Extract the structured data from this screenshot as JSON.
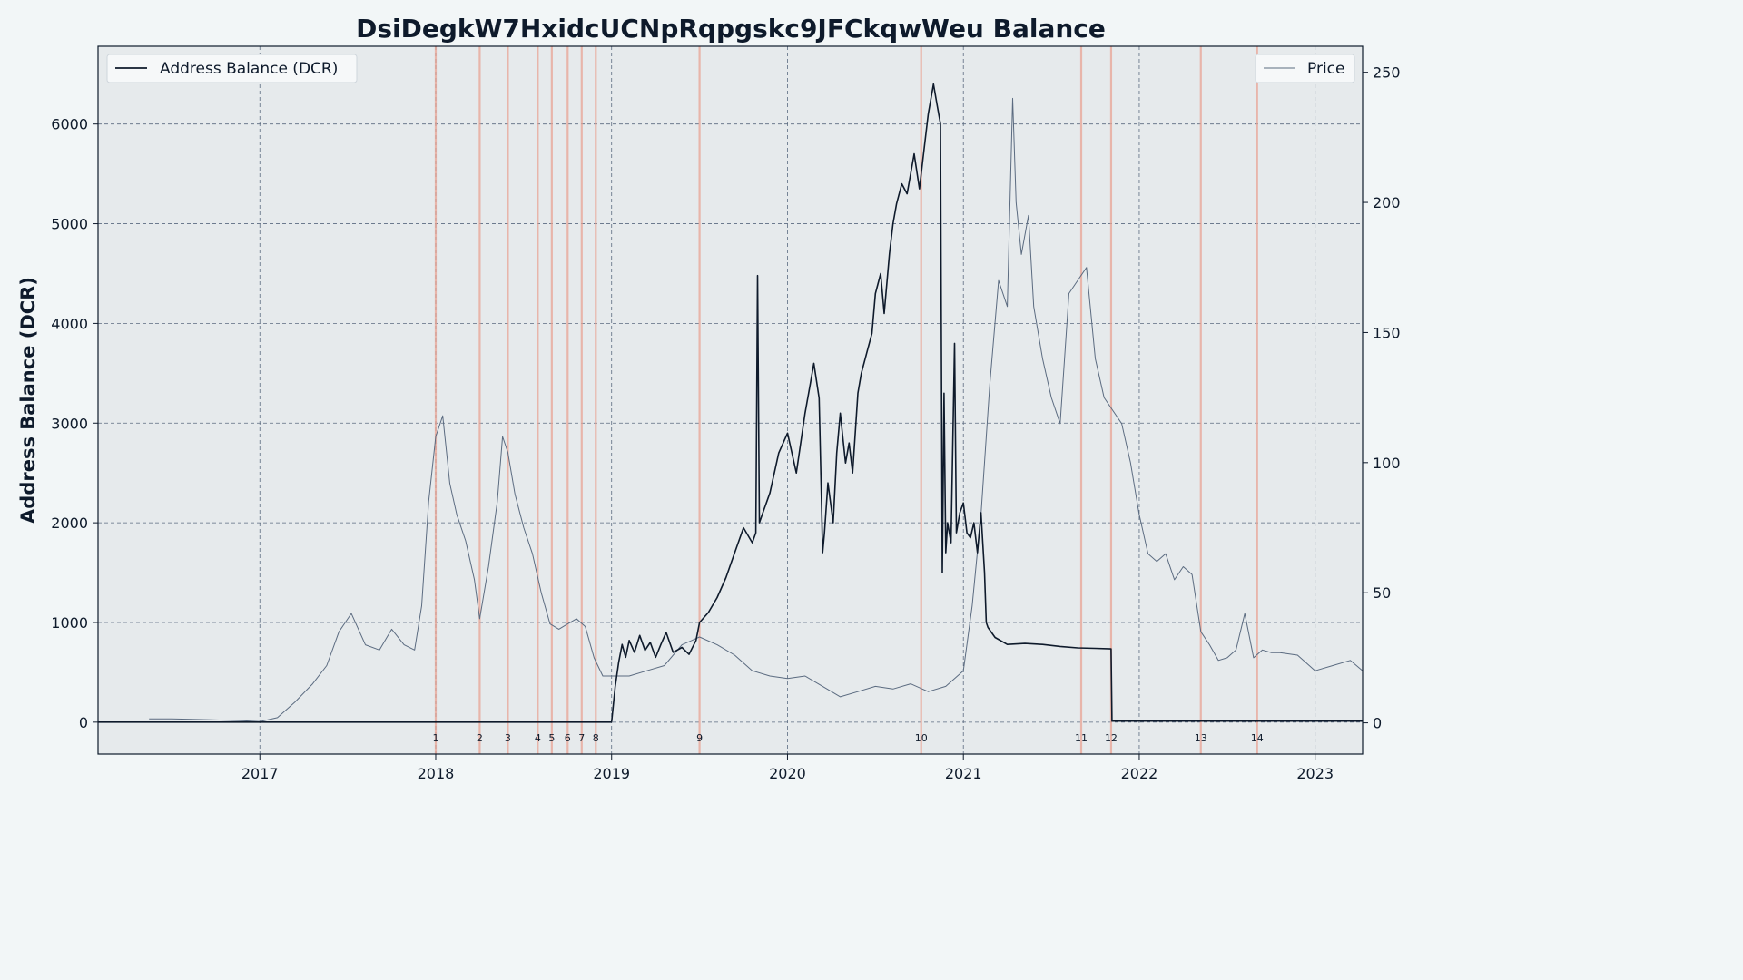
{
  "chart_data": {
    "type": "line",
    "title": "DsiDegkW7HxidcUCNpRqpgskc9JFCkqwWeu Balance",
    "ylabel": "Address Balance (DCR)",
    "y2label": "",
    "xlim": [
      2016.08,
      2023.27
    ],
    "ylim": [
      -320,
      6780
    ],
    "y2lim": [
      -12,
      260
    ],
    "x_ticks": [
      2017,
      2018,
      2019,
      2020,
      2021,
      2022,
      2023
    ],
    "x_tick_labels": [
      "2017",
      "2018",
      "2019",
      "2020",
      "2021",
      "2022",
      "2023"
    ],
    "y_ticks": [
      0,
      1000,
      2000,
      3000,
      4000,
      5000,
      6000
    ],
    "y2_ticks": [
      0,
      50,
      100,
      150,
      200,
      250
    ],
    "grid": true,
    "legend": [
      {
        "label": "Address Balance (DCR)",
        "position": "top-left",
        "color": "#0e1a2b"
      },
      {
        "label": "Price",
        "position": "top-right",
        "color": "#5b6b80"
      }
    ],
    "markers": [
      {
        "label": "1",
        "x": 2018.0
      },
      {
        "label": "2",
        "x": 2018.25
      },
      {
        "label": "3",
        "x": 2018.41
      },
      {
        "label": "4",
        "x": 2018.58
      },
      {
        "label": "5",
        "x": 2018.66
      },
      {
        "label": "6",
        "x": 2018.75
      },
      {
        "label": "7",
        "x": 2018.83
      },
      {
        "label": "8",
        "x": 2018.91
      },
      {
        "label": "9",
        "x": 2019.5
      },
      {
        "label": "10",
        "x": 2020.76
      },
      {
        "label": "11",
        "x": 2021.67
      },
      {
        "label": "12",
        "x": 2021.84
      },
      {
        "label": "13",
        "x": 2022.35
      },
      {
        "label": "14",
        "x": 2022.67
      }
    ],
    "series": [
      {
        "name": "Address Balance (DCR)",
        "axis": "left",
        "x": [
          2016.08,
          2018.0,
          2019.0,
          2019.02,
          2019.04,
          2019.06,
          2019.08,
          2019.1,
          2019.13,
          2019.16,
          2019.19,
          2019.22,
          2019.25,
          2019.28,
          2019.31,
          2019.35,
          2019.4,
          2019.44,
          2019.48,
          2019.5,
          2019.55,
          2019.6,
          2019.65,
          2019.7,
          2019.75,
          2019.8,
          2019.82,
          2019.83,
          2019.84,
          2019.86,
          2019.9,
          2019.95,
          2020.0,
          2020.05,
          2020.1,
          2020.13,
          2020.15,
          2020.18,
          2020.2,
          2020.21,
          2020.23,
          2020.26,
          2020.28,
          2020.3,
          2020.33,
          2020.35,
          2020.37,
          2020.4,
          2020.42,
          2020.45,
          2020.48,
          2020.5,
          2020.53,
          2020.55,
          2020.58,
          2020.6,
          2020.62,
          2020.65,
          2020.68,
          2020.7,
          2020.72,
          2020.75,
          2020.78,
          2020.8,
          2020.83,
          2020.85,
          2020.87,
          2020.88,
          2020.89,
          2020.9,
          2020.91,
          2020.93,
          2020.95,
          2020.96,
          2020.98,
          2021.0,
          2021.02,
          2021.04,
          2021.06,
          2021.08,
          2021.1,
          2021.12,
          2021.13,
          2021.14,
          2021.18,
          2021.25,
          2021.35,
          2021.45,
          2021.55,
          2021.65,
          2021.75,
          2021.84,
          2021.845,
          2022.0,
          2022.5,
          2023.0,
          2023.27
        ],
        "values": [
          0,
          0,
          0,
          350,
          600,
          780,
          650,
          820,
          700,
          870,
          720,
          800,
          650,
          780,
          900,
          700,
          750,
          680,
          820,
          1000,
          1100,
          1250,
          1450,
          1700,
          1950,
          1800,
          1900,
          4480,
          2000,
          2100,
          2300,
          2700,
          2900,
          2500,
          3100,
          3400,
          3600,
          3250,
          1700,
          1900,
          2400,
          2000,
          2700,
          3100,
          2600,
          2800,
          2500,
          3300,
          3500,
          3700,
          3900,
          4300,
          4500,
          4100,
          4700,
          5000,
          5200,
          5400,
          5300,
          5500,
          5700,
          5350,
          5800,
          6100,
          6400,
          6200,
          6000,
          1500,
          3300,
          1700,
          2000,
          1800,
          3800,
          1900,
          2100,
          2200,
          1900,
          1850,
          2000,
          1700,
          2100,
          1500,
          1000,
          950,
          850,
          780,
          790,
          780,
          760,
          745,
          740,
          735,
          10,
          10,
          10,
          10,
          10
        ]
      },
      {
        "name": "Price",
        "axis": "right",
        "x": [
          2016.37,
          2016.5,
          2016.7,
          2016.9,
          2017.0,
          2017.1,
          2017.2,
          2017.3,
          2017.38,
          2017.45,
          2017.52,
          2017.6,
          2017.68,
          2017.75,
          2017.82,
          2017.88,
          2017.92,
          2017.96,
          2018.0,
          2018.04,
          2018.08,
          2018.12,
          2018.17,
          2018.22,
          2018.25,
          2018.3,
          2018.35,
          2018.38,
          2018.41,
          2018.45,
          2018.5,
          2018.55,
          2018.6,
          2018.65,
          2018.7,
          2018.75,
          2018.8,
          2018.85,
          2018.9,
          2018.95,
          2019.0,
          2019.1,
          2019.2,
          2019.3,
          2019.4,
          2019.5,
          2019.6,
          2019.7,
          2019.8,
          2019.9,
          2020.0,
          2020.1,
          2020.2,
          2020.3,
          2020.4,
          2020.5,
          2020.6,
          2020.7,
          2020.8,
          2020.9,
          2021.0,
          2021.05,
          2021.1,
          2021.15,
          2021.2,
          2021.25,
          2021.28,
          2021.3,
          2021.33,
          2021.37,
          2021.4,
          2021.45,
          2021.5,
          2021.55,
          2021.6,
          2021.65,
          2021.7,
          2021.75,
          2021.8,
          2021.85,
          2021.9,
          2021.95,
          2022.0,
          2022.05,
          2022.1,
          2022.15,
          2022.2,
          2022.25,
          2022.3,
          2022.35,
          2022.4,
          2022.45,
          2022.5,
          2022.55,
          2022.6,
          2022.65,
          2022.7,
          2022.75,
          2022.8,
          2022.9,
          2023.0,
          2023.1,
          2023.2,
          2023.27
        ],
        "values": [
          1.5,
          1.5,
          1.2,
          0.8,
          0.5,
          2,
          8,
          15,
          22,
          35,
          42,
          30,
          28,
          36,
          30,
          28,
          45,
          85,
          110,
          118,
          92,
          80,
          70,
          55,
          40,
          60,
          85,
          110,
          104,
          88,
          75,
          65,
          50,
          38,
          36,
          38,
          40,
          37,
          25,
          18,
          18,
          18,
          20,
          22,
          30,
          33,
          30,
          26,
          20,
          18,
          17,
          18,
          14,
          10,
          12,
          14,
          13,
          15,
          12,
          14,
          20,
          45,
          80,
          130,
          170,
          160,
          240,
          200,
          180,
          195,
          160,
          140,
          125,
          115,
          165,
          170,
          175,
          140,
          125,
          120,
          115,
          100,
          80,
          65,
          62,
          65,
          55,
          60,
          57,
          35,
          30,
          24,
          25,
          28,
          42,
          25,
          28,
          27,
          27,
          26,
          20,
          22,
          24,
          20
        ]
      }
    ]
  }
}
